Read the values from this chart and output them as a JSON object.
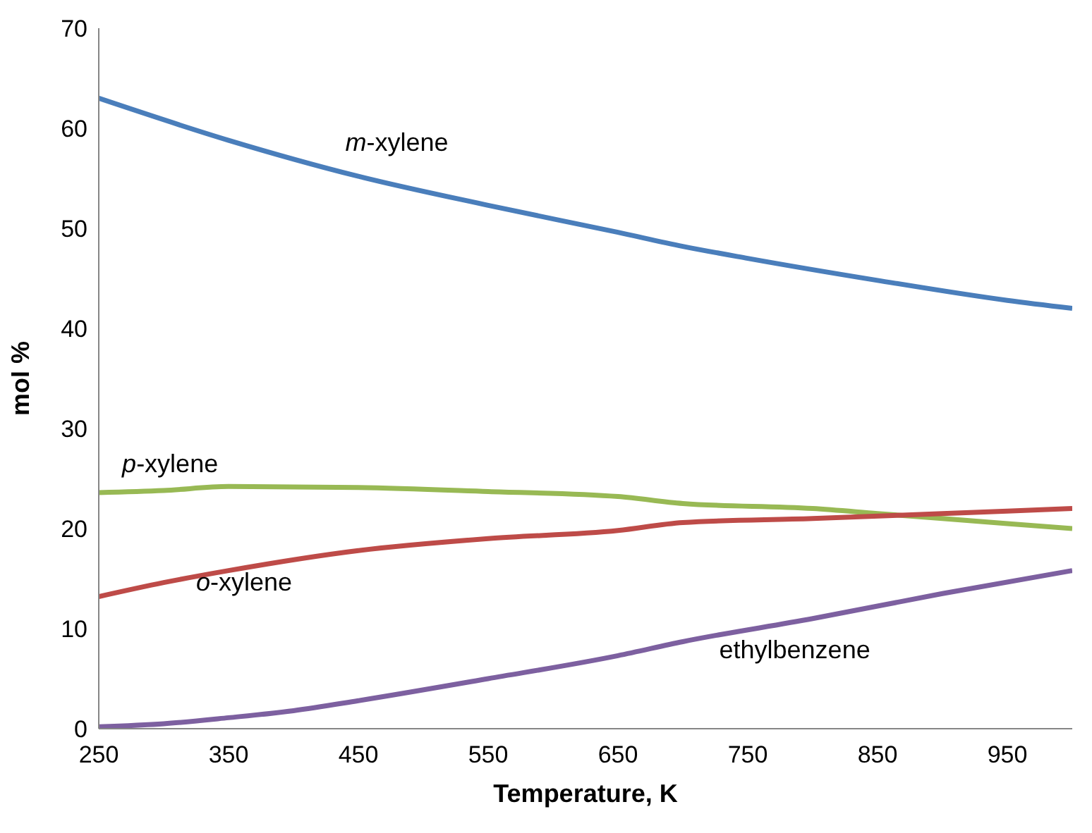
{
  "chart_data": {
    "type": "line",
    "xlabel": "Temperature, K",
    "ylabel": "mol %",
    "xlim": [
      250,
      1000
    ],
    "xticks": [
      250,
      350,
      450,
      550,
      650,
      750,
      850,
      950
    ],
    "ylim": [
      0,
      70
    ],
    "yticks": [
      0,
      10,
      20,
      30,
      40,
      50,
      60,
      70
    ],
    "grid": false,
    "legend": false,
    "marker": "none",
    "line_style": "solid",
    "series": [
      {
        "name": "m-xylene",
        "color": "#4a7ebb",
        "x": [
          250,
          350,
          450,
          550,
          650,
          700,
          750,
          850,
          950,
          1000
        ],
        "values": [
          63,
          58.8,
          55.2,
          52.3,
          49.6,
          48.2,
          47,
          44.8,
          42.8,
          42
        ]
      },
      {
        "name": "p-xylene",
        "color": "#98b954",
        "x": [
          250,
          300,
          350,
          450,
          550,
          650,
          700,
          800,
          850,
          900,
          1000
        ],
        "values": [
          23.6,
          23.8,
          24.2,
          24.1,
          23.7,
          23.2,
          22.5,
          22,
          21.5,
          21,
          20
        ]
      },
      {
        "name": "o-xylene",
        "color": "#be4b48",
        "x": [
          250,
          300,
          350,
          450,
          550,
          650,
          700,
          800,
          900,
          1000
        ],
        "values": [
          13.2,
          14.6,
          15.8,
          17.8,
          19,
          19.8,
          20.6,
          21,
          21.5,
          22
        ]
      },
      {
        "name": "ethylbenzene",
        "color": "#7d60a0",
        "x": [
          250,
          300,
          350,
          400,
          450,
          550,
          650,
          700,
          800,
          900,
          1000
        ],
        "values": [
          0.2,
          0.5,
          1.1,
          1.8,
          2.8,
          5,
          7.3,
          8.7,
          11,
          13.5,
          15.8
        ]
      }
    ]
  }
}
